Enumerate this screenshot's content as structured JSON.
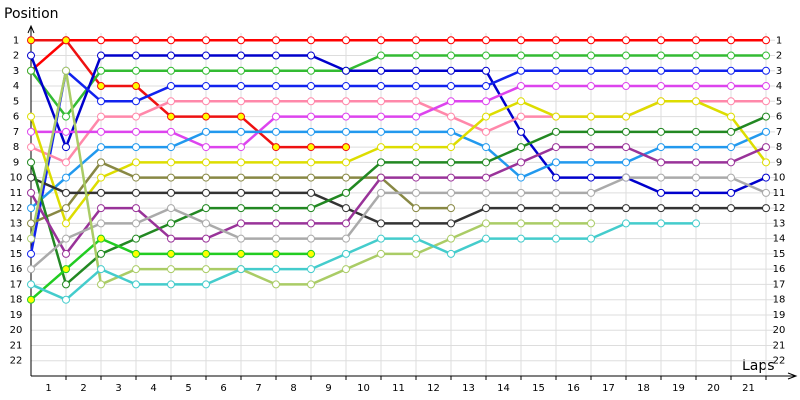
{
  "chart_data": {
    "type": "line",
    "y_axis_title": "Position",
    "x_axis_title": "Laps",
    "x": [
      0,
      1,
      2,
      3,
      4,
      5,
      6,
      7,
      8,
      9,
      10,
      11,
      12,
      13,
      14,
      15,
      16,
      17,
      18,
      19,
      20,
      21
    ],
    "xlim": [
      0,
      21.6
    ],
    "xticks": [
      1,
      2,
      3,
      4,
      5,
      6,
      7,
      8,
      9,
      10,
      11,
      12,
      13,
      14,
      15,
      16,
      17,
      18,
      19,
      20,
      21
    ],
    "ylim": [
      23,
      0
    ],
    "yticks": [
      1,
      2,
      3,
      4,
      5,
      6,
      7,
      8,
      9,
      10,
      11,
      12,
      13,
      14,
      15,
      16,
      17,
      18,
      19,
      20,
      21,
      22
    ],
    "grid": true,
    "series": [
      {
        "color": "#ff0000",
        "values": [
          3,
          1,
          1,
          1,
          1,
          1,
          1,
          1,
          1,
          1,
          1,
          1,
          1,
          1,
          1,
          1,
          1,
          1,
          1,
          1,
          1,
          1
        ]
      },
      {
        "color": "#ee1111",
        "marker_fill": "#ffff00",
        "values": [
          1,
          1,
          4,
          4,
          6,
          6,
          6,
          8,
          8,
          8,
          null,
          null,
          null,
          null,
          null,
          null,
          null,
          null,
          null,
          null,
          null,
          null
        ]
      },
      {
        "color": "#33bb33",
        "values": [
          3,
          6,
          3,
          3,
          3,
          3,
          3,
          3,
          3,
          3,
          2,
          2,
          2,
          2,
          2,
          2,
          2,
          2,
          2,
          2,
          2,
          2
        ]
      },
      {
        "color": "#0000cc",
        "values": [
          2,
          8,
          2,
          2,
          2,
          2,
          2,
          2,
          2,
          3,
          3,
          3,
          3,
          3,
          7,
          10,
          10,
          10,
          11,
          11,
          11,
          10
        ]
      },
      {
        "color": "#1122ee",
        "values": [
          15,
          3,
          5,
          5,
          4,
          4,
          4,
          4,
          4,
          4,
          4,
          4,
          4,
          4,
          3,
          3,
          3,
          3,
          3,
          3,
          3,
          3
        ]
      },
      {
        "color": "#ff88aa",
        "values": [
          8,
          9,
          6,
          6,
          5,
          5,
          5,
          5,
          5,
          5,
          5,
          5,
          6,
          7,
          6,
          6,
          6,
          6,
          5,
          5,
          5,
          5
        ]
      },
      {
        "color": "#dd44ee",
        "values": [
          7,
          7,
          7,
          7,
          7,
          8,
          8,
          6,
          6,
          6,
          6,
          6,
          5,
          5,
          4,
          4,
          4,
          4,
          4,
          4,
          4,
          4
        ]
      },
      {
        "color": "#2299ee",
        "values": [
          12,
          10,
          8,
          8,
          8,
          7,
          7,
          7,
          7,
          7,
          7,
          7,
          7,
          8,
          10,
          9,
          9,
          9,
          8,
          8,
          8,
          7
        ]
      },
      {
        "color": "#dddd00",
        "values": [
          6,
          13,
          10,
          9,
          9,
          9,
          9,
          9,
          9,
          9,
          8,
          8,
          8,
          6,
          5,
          6,
          6,
          6,
          5,
          5,
          6,
          9
        ]
      },
      {
        "color": "#888844",
        "values": [
          13,
          12,
          9,
          10,
          10,
          10,
          10,
          10,
          10,
          10,
          10,
          12,
          12,
          null,
          null,
          null,
          null,
          null,
          null,
          null,
          null,
          null
        ]
      },
      {
        "color": "#333333",
        "values": [
          10,
          11,
          11,
          11,
          11,
          11,
          11,
          11,
          11,
          12,
          13,
          13,
          13,
          12,
          12,
          12,
          12,
          12,
          12,
          12,
          12,
          12
        ]
      },
      {
        "color": "#228822",
        "values": [
          9,
          17,
          15,
          14,
          13,
          12,
          12,
          12,
          12,
          11,
          9,
          9,
          9,
          9,
          8,
          7,
          7,
          7,
          7,
          7,
          7,
          6
        ]
      },
      {
        "color": "#993399",
        "values": [
          11,
          15,
          12,
          12,
          14,
          14,
          13,
          13,
          13,
          13,
          10,
          10,
          10,
          10,
          9,
          8,
          8,
          8,
          9,
          9,
          9,
          8
        ]
      },
      {
        "color": "#aaaaaa",
        "values": [
          16,
          14,
          13,
          13,
          12,
          13,
          14,
          14,
          14,
          14,
          11,
          11,
          11,
          11,
          11,
          11,
          11,
          10,
          10,
          10,
          10,
          11
        ]
      },
      {
        "color": "#22cc22",
        "marker_fill": "#ffff00",
        "values": [
          18,
          16,
          14,
          15,
          15,
          15,
          15,
          15,
          15,
          null,
          null,
          null,
          null,
          null,
          null,
          null,
          null,
          null,
          null,
          null,
          null,
          null
        ]
      },
      {
        "color": "#aacc66",
        "values": [
          14,
          3,
          17,
          16,
          16,
          16,
          16,
          17,
          17,
          16,
          15,
          15,
          14,
          13,
          13,
          13,
          13,
          null,
          null,
          null,
          null,
          null
        ]
      },
      {
        "color": "#44cccc",
        "values": [
          17,
          18,
          16,
          17,
          17,
          17,
          16,
          16,
          16,
          15,
          14,
          14,
          15,
          14,
          14,
          14,
          14,
          13,
          13,
          13,
          null,
          null
        ]
      }
    ]
  }
}
